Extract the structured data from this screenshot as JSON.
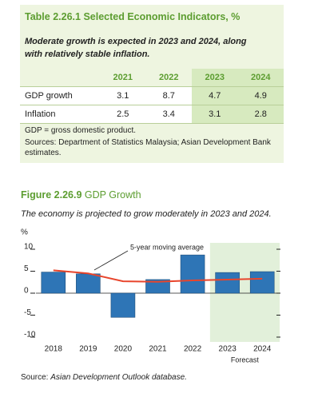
{
  "table": {
    "number": "Table 2.26.1",
    "title": "Selected Economic Indicators, %",
    "subtitle": "Moderate growth is expected in 2023 and 2024, along with relatively stable inflation.",
    "columns": [
      "2021",
      "2022",
      "2023",
      "2024"
    ],
    "rows": [
      {
        "label": "GDP growth",
        "values": [
          "3.1",
          "8.7",
          "4.7",
          "4.9"
        ]
      },
      {
        "label": "Inflation",
        "values": [
          "2.5",
          "3.4",
          "3.1",
          "2.8"
        ]
      }
    ],
    "notes": [
      "GDP = gross domestic product.",
      "Sources: Department of Statistics Malaysia; Asian Development Bank estimates."
    ]
  },
  "chart_data": {
    "type": "bar",
    "figure_number": "Figure 2.26.9",
    "title": "GDP Growth",
    "subtitle": "The economy is projected to grow moderately in 2023 and 2024.",
    "y_unit": "%",
    "categories": [
      "2018",
      "2019",
      "2020",
      "2021",
      "2022",
      "2023",
      "2024"
    ],
    "values": [
      4.8,
      4.4,
      -5.5,
      3.1,
      8.7,
      4.7,
      4.9
    ],
    "color": "#2e75b6",
    "moving_average": {
      "name": "5-year moving average",
      "values": [
        5.2,
        4.5,
        2.7,
        2.6,
        2.9,
        3.1,
        3.3
      ],
      "color": "#e8452c"
    },
    "forecast_start": "2023",
    "forecast_label": "Forecast",
    "ylim": [
      -10,
      10
    ],
    "yticks": [
      10,
      5,
      0,
      -5,
      -10
    ],
    "source_prefix": "Source:",
    "source": "Asian Development Outlook database."
  }
}
